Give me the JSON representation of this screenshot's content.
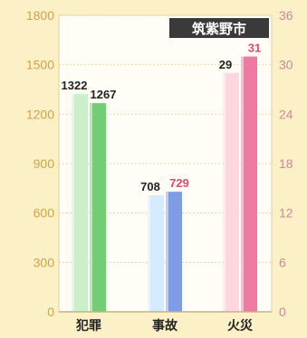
{
  "chart_data": {
    "type": "bar",
    "title": "筑紫野市",
    "categories": [
      "犯罪",
      "事故",
      "火災"
    ],
    "left_axis": {
      "ylim": [
        0,
        1800
      ],
      "ticks": [
        "0",
        "300",
        "600",
        "900",
        "1200",
        "1500",
        "1800"
      ]
    },
    "right_axis": {
      "ylim": [
        0,
        36
      ],
      "ticks": [
        "0",
        "6",
        "12",
        "18",
        "24",
        "30",
        "36"
      ]
    },
    "groups": [
      {
        "category": "犯罪",
        "axis": "left",
        "values": [
          1322,
          1267
        ],
        "labels": [
          "1322",
          "1267"
        ]
      },
      {
        "category": "事故",
        "axis": "left",
        "values": [
          708,
          729
        ],
        "labels": [
          "708",
          "729"
        ]
      },
      {
        "category": "火災",
        "axis": "right",
        "values": [
          29,
          31
        ],
        "labels": [
          "29",
          "31"
        ]
      }
    ],
    "grid": true,
    "colors": {
      "background": "#fbf0c6",
      "plot": "#fffdf6",
      "grid": "#e8d9a8",
      "axis": "#c9b27a",
      "left_tick": "#d2a24a",
      "right_tick": "#c98a9a",
      "title_bg": "#3a3a3a",
      "bars": [
        [
          "#cbeecb",
          "#74cc74"
        ],
        [
          "#d5eaff",
          "#7f9de6"
        ],
        [
          "#ffd5e0",
          "#ee7aa0"
        ]
      ],
      "value_labels": [
        [
          "#222222",
          "#222222"
        ],
        [
          "#222222",
          "#e04a6a"
        ],
        [
          "#222222",
          "#e04a6a"
        ]
      ]
    }
  }
}
